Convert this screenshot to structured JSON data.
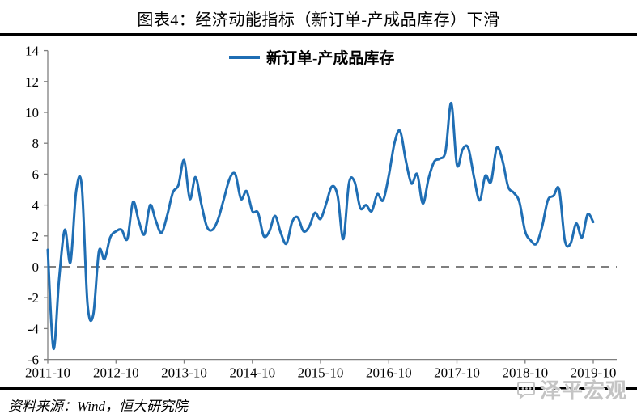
{
  "title": "图表4：经济动能指标（新订单-产成品库存）下滑",
  "source": {
    "text": "资料来源：Wind，恒大研究院"
  },
  "watermark": {
    "text": "泽平宏观",
    "icon": "chat-bubble-icon"
  },
  "colors": {
    "line": "#1f6eb4",
    "axis": "#7f7f7f",
    "zero_line": "#7f7f7f",
    "text": "#000000",
    "rule": "#000000",
    "watermark": "#c4c4c4"
  },
  "chart_data": {
    "type": "line",
    "title": "",
    "xlabel": "",
    "ylabel": "",
    "ylim": [
      -6,
      14
    ],
    "y_ticks": [
      14,
      12,
      10,
      8,
      6,
      4,
      2,
      0,
      -2,
      -4,
      -6
    ],
    "x_tick_labels": [
      "2011-10",
      "2012-10",
      "2013-10",
      "2014-10",
      "2015-10",
      "2016-10",
      "2017-10",
      "2018-10",
      "2019-10"
    ],
    "months_per_tick": 12,
    "grid": false,
    "legend_position": "top-center",
    "zero_reference_line": {
      "value": 0,
      "style": "dashed"
    },
    "series": [
      {
        "name": "新订单-产成品库存",
        "first_point": "2011-10",
        "last_point": "2019-10",
        "values": [
          1.1,
          -5.3,
          -0.8,
          2.4,
          0.3,
          4.9,
          5.2,
          -2.4,
          -3.1,
          1.0,
          0.5,
          1.9,
          2.3,
          2.4,
          1.8,
          4.2,
          3.0,
          2.1,
          4.0,
          3.0,
          2.2,
          3.3,
          4.8,
          5.3,
          6.9,
          4.4,
          5.8,
          4.1,
          2.6,
          2.4,
          3.1,
          4.4,
          5.7,
          6.0,
          4.4,
          4.9,
          3.6,
          3.5,
          2.0,
          2.3,
          3.3,
          2.2,
          1.5,
          2.9,
          3.2,
          2.3,
          2.6,
          3.5,
          3.1,
          4.1,
          5.2,
          4.6,
          1.8,
          5.4,
          5.5,
          3.8,
          4.0,
          3.6,
          4.7,
          4.3,
          5.9,
          8.0,
          8.8,
          6.9,
          5.4,
          6.0,
          4.1,
          5.7,
          6.8,
          7.0,
          7.5,
          10.6,
          6.6,
          7.6,
          7.7,
          5.8,
          4.3,
          5.9,
          5.5,
          7.7,
          6.9,
          5.2,
          4.8,
          4.2,
          2.3,
          1.7,
          1.5,
          2.6,
          4.3,
          4.6,
          5.0,
          1.7,
          1.5,
          2.8,
          1.9,
          3.4,
          2.9
        ]
      }
    ]
  }
}
